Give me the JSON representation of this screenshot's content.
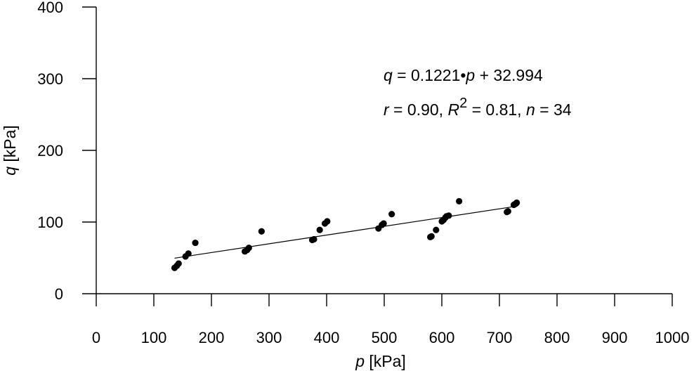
{
  "chart_data": {
    "type": "scatter",
    "title": "",
    "xlabel": {
      "symbol": "p",
      "unit": " [kPa]"
    },
    "ylabel": {
      "symbol": "q",
      "unit": " [kPa]"
    },
    "xlim": [
      0,
      1000
    ],
    "ylim": [
      0,
      400
    ],
    "x_ticks": [
      0,
      100,
      200,
      300,
      400,
      500,
      600,
      700,
      800,
      900,
      1000
    ],
    "y_ticks": [
      0,
      100,
      200,
      300,
      400
    ],
    "grid": false,
    "legend": "none",
    "marker_color": "#000000",
    "line_color": "#000000",
    "series": [
      {
        "points": [
          {
            "x": 136,
            "y": 36
          },
          {
            "x": 140,
            "y": 39
          },
          {
            "x": 143,
            "y": 42
          },
          {
            "x": 155,
            "y": 52
          },
          {
            "x": 160,
            "y": 56
          },
          {
            "x": 172,
            "y": 71
          },
          {
            "x": 258,
            "y": 59
          },
          {
            "x": 262,
            "y": 61
          },
          {
            "x": 265,
            "y": 64
          },
          {
            "x": 287,
            "y": 87
          },
          {
            "x": 375,
            "y": 75
          },
          {
            "x": 378,
            "y": 76
          },
          {
            "x": 388,
            "y": 89
          },
          {
            "x": 397,
            "y": 98
          },
          {
            "x": 401,
            "y": 101
          },
          {
            "x": 490,
            "y": 91
          },
          {
            "x": 496,
            "y": 96
          },
          {
            "x": 499,
            "y": 98
          },
          {
            "x": 513,
            "y": 111
          },
          {
            "x": 580,
            "y": 79
          },
          {
            "x": 582,
            "y": 80
          },
          {
            "x": 590,
            "y": 89
          },
          {
            "x": 600,
            "y": 101
          },
          {
            "x": 603,
            "y": 103
          },
          {
            "x": 606,
            "y": 106
          },
          {
            "x": 608,
            "y": 108
          },
          {
            "x": 612,
            "y": 109
          },
          {
            "x": 630,
            "y": 129
          },
          {
            "x": 713,
            "y": 114
          },
          {
            "x": 715,
            "y": 115
          },
          {
            "x": 725,
            "y": 124
          },
          {
            "x": 727,
            "y": 125
          },
          {
            "x": 729,
            "y": 126
          },
          {
            "x": 730,
            "y": 127
          }
        ]
      }
    ],
    "trendline": {
      "slope": 0.1221,
      "intercept": 32.994,
      "x_range": [
        136,
        730
      ]
    },
    "annotations": {
      "equation": {
        "q": "q",
        "eq_mid": " = 0.1221•",
        "p": "p",
        "eq_tail": " + 32.994"
      },
      "stats": {
        "r": "r",
        "r_val": " = 0.90, ",
        "R": "R",
        "R_sup": "2",
        "R_val": " = 0.81, ",
        "n": "n",
        "n_val": " = 34"
      }
    }
  }
}
